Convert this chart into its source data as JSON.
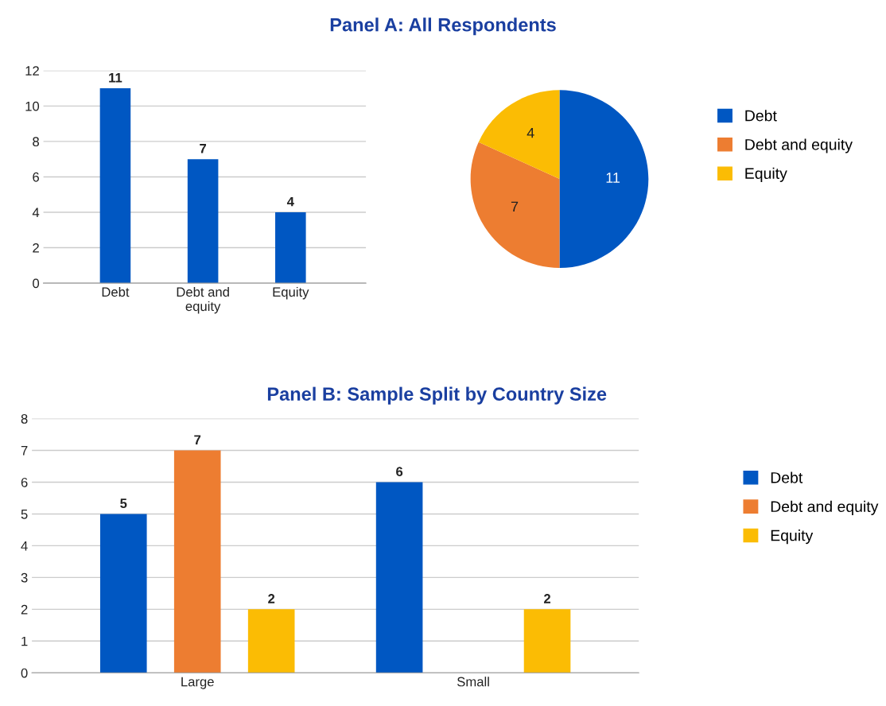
{
  "chart_data": [
    {
      "type": "bar",
      "title": "Panel A: All Respondents",
      "categories": [
        "Debt",
        "Debt and equity",
        "Equity"
      ],
      "values": [
        11,
        7,
        4
      ],
      "color": "#0057c2",
      "ylim": [
        0,
        12
      ],
      "yticks": [
        0,
        2,
        4,
        6,
        8,
        10,
        12
      ],
      "grid": "y",
      "data_labels": true
    },
    {
      "type": "pie",
      "categories": [
        "Debt",
        "Debt and equity",
        "Equity"
      ],
      "values": [
        11,
        7,
        4
      ],
      "colors": [
        "#0057c2",
        "#ed7d31",
        "#fbbc04"
      ],
      "data_labels": true,
      "legend": "right"
    },
    {
      "type": "bar",
      "title": "Panel B: Sample Split by Country Size",
      "categories": [
        "Large",
        "Small"
      ],
      "series": [
        {
          "name": "Debt",
          "color": "#0057c2",
          "values": [
            5,
            6
          ]
        },
        {
          "name": "Debt and equity",
          "color": "#ed7d31",
          "values": [
            7,
            null
          ]
        },
        {
          "name": "Equity",
          "color": "#fbbc04",
          "values": [
            2,
            2
          ]
        }
      ],
      "ylim": [
        0,
        8
      ],
      "yticks": [
        0,
        1,
        2,
        3,
        4,
        5,
        6,
        7,
        8
      ],
      "grid": "y",
      "data_labels": true,
      "legend": "right"
    }
  ]
}
